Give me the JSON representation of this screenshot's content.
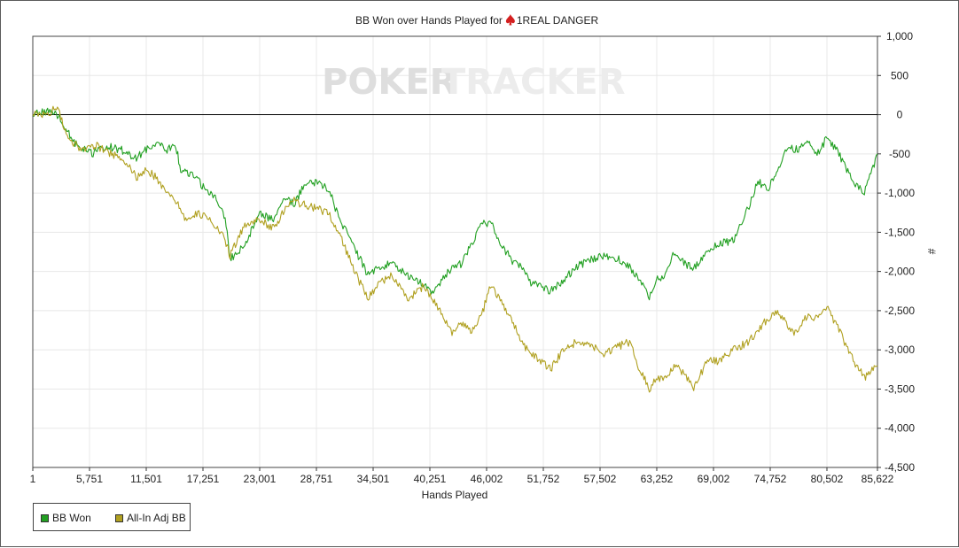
{
  "chart_data": {
    "type": "line",
    "title": "BB Won over Hands Played for",
    "player_name": "1REAL DANGER",
    "player_icon": "spade-icon",
    "xlabel": "Hands Played",
    "ylabel": "#",
    "xlim": [
      1,
      85622
    ],
    "ylim": [
      -4500,
      1000
    ],
    "x_ticks": [
      1,
      5751,
      11501,
      17251,
      23001,
      28751,
      34501,
      40251,
      46002,
      51752,
      57502,
      63252,
      69002,
      74752,
      80502,
      85622
    ],
    "x_tick_labels": [
      "1",
      "5,751",
      "11,501",
      "17,251",
      "23,001",
      "28,751",
      "34,501",
      "40,251",
      "46,002",
      "51,752",
      "57,502",
      "63,252",
      "69,002",
      "74,752",
      "80,502",
      "85,622"
    ],
    "y_ticks": [
      1000,
      500,
      0,
      -500,
      -1000,
      -1500,
      -2000,
      -2500,
      -3000,
      -3500,
      -4000,
      -4500
    ],
    "y_tick_labels": [
      "1,000",
      "500",
      "0",
      "-500",
      "-1,000",
      "-1,500",
      "-2,000",
      "-2,500",
      "-3,000",
      "-3,500",
      "-4,000",
      "-4,500"
    ],
    "grid": true,
    "legend_position": "bottom-left",
    "watermark_left": "POKER",
    "watermark_right": "TRACKER",
    "series": [
      {
        "name": "BB Won",
        "color": "#22a022",
        "x": [
          1,
          1500,
          2500,
          4500,
          6000,
          7500,
          9000,
          10500,
          11500,
          12500,
          13500,
          14500,
          15000,
          16500,
          17500,
          18500,
          19500,
          20000,
          21500,
          23000,
          24500,
          25500,
          26500,
          27500,
          28751,
          30000,
          31000,
          32000,
          33000,
          34000,
          35000,
          36500,
          38000,
          39500,
          40500,
          41500,
          42500,
          43500,
          44500,
          45500,
          46500,
          47500,
          48500,
          49500,
          50500,
          51500,
          52500,
          53500,
          55000,
          56500,
          58000,
          59500,
          60500,
          61500,
          62500,
          63200,
          64000,
          65000,
          66000,
          67000,
          68500,
          69500,
          71000,
          72500,
          73500,
          74500,
          75500,
          76500,
          77500,
          78500,
          79500,
          80502,
          81500,
          82500,
          83500,
          84300,
          85622
        ],
        "y": [
          0,
          50,
          0,
          -400,
          -500,
          -400,
          -450,
          -550,
          -450,
          -350,
          -450,
          -400,
          -700,
          -800,
          -950,
          -1050,
          -1300,
          -1850,
          -1650,
          -1250,
          -1350,
          -1050,
          -1150,
          -900,
          -850,
          -950,
          -1300,
          -1550,
          -1800,
          -2050,
          -1950,
          -1900,
          -2050,
          -2150,
          -2250,
          -2100,
          -1950,
          -1900,
          -1650,
          -1350,
          -1400,
          -1650,
          -1850,
          -1950,
          -2150,
          -2200,
          -2250,
          -2150,
          -1950,
          -1850,
          -1800,
          -1850,
          -1950,
          -2100,
          -2350,
          -2100,
          -2050,
          -1750,
          -1900,
          -1950,
          -1750,
          -1650,
          -1600,
          -1200,
          -850,
          -950,
          -700,
          -400,
          -450,
          -350,
          -500,
          -300,
          -450,
          -700,
          -900,
          -1000,
          -500
        ]
      },
      {
        "name": "All-In Adj BB",
        "color": "#b0a020",
        "x": [
          1,
          1500,
          2500,
          3500,
          5000,
          6500,
          8000,
          9500,
          10500,
          11500,
          12500,
          13500,
          14500,
          15500,
          16500,
          17500,
          18500,
          19500,
          20000,
          21500,
          23000,
          24500,
          25500,
          26500,
          27500,
          28751,
          30000,
          31000,
          32000,
          33000,
          34000,
          35000,
          36500,
          38000,
          39500,
          40500,
          41500,
          42500,
          43500,
          44500,
          45500,
          46500,
          47500,
          48500,
          49500,
          50500,
          51500,
          52500,
          53500,
          55000,
          56500,
          58000,
          59500,
          60500,
          61500,
          62500,
          63200,
          64000,
          65000,
          66000,
          67000,
          68500,
          69500,
          71000,
          72500,
          73500,
          74500,
          75500,
          76500,
          77500,
          78500,
          79500,
          80502,
          81500,
          82500,
          83500,
          84300,
          85622
        ],
        "y": [
          0,
          0,
          100,
          -300,
          -450,
          -400,
          -500,
          -600,
          -800,
          -700,
          -800,
          -1000,
          -1100,
          -1350,
          -1250,
          -1300,
          -1400,
          -1600,
          -1800,
          -1400,
          -1350,
          -1450,
          -1200,
          -1100,
          -1150,
          -1200,
          -1250,
          -1500,
          -1800,
          -2100,
          -2350,
          -2150,
          -2050,
          -2350,
          -2200,
          -2350,
          -2550,
          -2800,
          -2650,
          -2750,
          -2550,
          -2150,
          -2400,
          -2600,
          -2900,
          -3050,
          -3150,
          -3250,
          -3050,
          -2900,
          -2950,
          -3050,
          -2950,
          -2900,
          -3250,
          -3500,
          -3350,
          -3400,
          -3200,
          -3300,
          -3500,
          -3100,
          -3150,
          -3000,
          -2900,
          -2750,
          -2600,
          -2500,
          -2700,
          -2800,
          -2550,
          -2600,
          -2450,
          -2700,
          -2950,
          -3200,
          -3350,
          -3200
        ]
      }
    ]
  }
}
